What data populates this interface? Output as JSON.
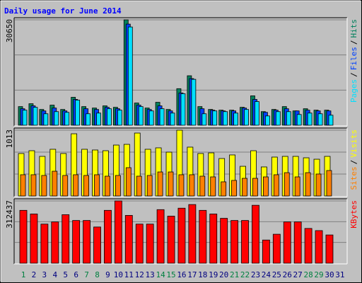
{
  "chart_data": [
    {
      "type": "bar",
      "title": "Daily usage for June 2014",
      "legend_separator": "/",
      "ylim": [
        0,
        30650
      ],
      "yticks": [
        30650
      ],
      "series": [
        {
          "name": "Hits",
          "color": "#00805c",
          "values": [
            5420,
            6255,
            4590,
            5840,
            4590,
            8130,
            5420,
            5000,
            5630,
            5210,
            30650,
            6460,
            5000,
            6670,
            4590,
            10630,
            14390,
            5420,
            4590,
            4380,
            4380,
            5210,
            8550,
            3960,
            4590,
            5420,
            4170,
            4800,
            4380,
            4380,
            null
          ]
        },
        {
          "name": "Files",
          "color": "#0040ff",
          "values": [
            4800,
            5630,
            4170,
            5000,
            4170,
            7510,
            4800,
            4590,
            5210,
            4800,
            29400,
            5840,
            4590,
            5630,
            4170,
            9390,
            13560,
            4800,
            4380,
            4170,
            4170,
            5000,
            7510,
            3750,
            4380,
            4800,
            4170,
            4380,
            4170,
            4170,
            null
          ]
        },
        {
          "name": "Pages",
          "color": "#00e0ff",
          "values": [
            4380,
            5210,
            3340,
            3960,
            3750,
            7300,
            3340,
            3540,
            4800,
            4380,
            28570,
            5420,
            4170,
            4800,
            3540,
            9180,
            13350,
            3340,
            4170,
            3960,
            3540,
            4590,
            6880,
            2710,
            3960,
            3960,
            3130,
            3540,
            3340,
            2920,
            null
          ]
        }
      ]
    },
    {
      "type": "bar",
      "ylim": [
        0,
        1013
      ],
      "yticks": [
        1013
      ],
      "series": [
        {
          "name": "Visits",
          "color": "#ffff00",
          "values": [
            654,
            697,
            610,
            719,
            654,
            958,
            719,
            708,
            697,
            784,
            795,
            969,
            719,
            741,
            675,
            1013,
            752,
            654,
            664,
            577,
            632,
            457,
            697,
            447,
            599,
            610,
            610,
            588,
            566,
            610,
            null
          ]
        },
        {
          "name": "Sites",
          "color": "#ff8000",
          "values": [
            327,
            327,
            316,
            381,
            316,
            327,
            316,
            327,
            305,
            316,
            436,
            305,
            316,
            370,
            370,
            327,
            327,
            305,
            294,
            218,
            240,
            272,
            272,
            294,
            327,
            359,
            294,
            359,
            338,
            392,
            null
          ]
        }
      ]
    },
    {
      "type": "bar",
      "ylim": [
        0,
        312437
      ],
      "yticks": [
        312437
      ],
      "categories": [
        "1",
        "2",
        "3",
        "4",
        "5",
        "6",
        "7",
        "8",
        "9",
        "10",
        "11",
        "12",
        "13",
        "14",
        "15",
        "16",
        "17",
        "18",
        "19",
        "20",
        "21",
        "22",
        "23",
        "24",
        "25",
        "26",
        "27",
        "28",
        "29",
        "30",
        "31"
      ],
      "label_colors": [
        "#008040",
        "#000080",
        "#000080",
        "#000080",
        "#000080",
        "#000080",
        "#008040",
        "#008040",
        "#000080",
        "#000080",
        "#000080",
        "#000080",
        "#000080",
        "#008040",
        "#008040",
        "#000080",
        "#000080",
        "#000080",
        "#000080",
        "#000080",
        "#008040",
        "#008040",
        "#000080",
        "#000080",
        "#000080",
        "#000080",
        "#000080",
        "#008040",
        "#008040",
        "#000080",
        "#000080"
      ],
      "series": [
        {
          "name": "KBytes",
          "color": "#ff0000",
          "values": [
            265200,
            247000,
            196200,
            207100,
            243400,
            214300,
            214300,
            181600,
            265200,
            312437,
            239800,
            196200,
            196200,
            268800,
            236100,
            276100,
            294300,
            265200,
            247000,
            225200,
            214300,
            214300,
            290600,
            116300,
            145300,
            207100,
            207100,
            174400,
            163500,
            141700,
            null
          ]
        }
      ]
    }
  ]
}
